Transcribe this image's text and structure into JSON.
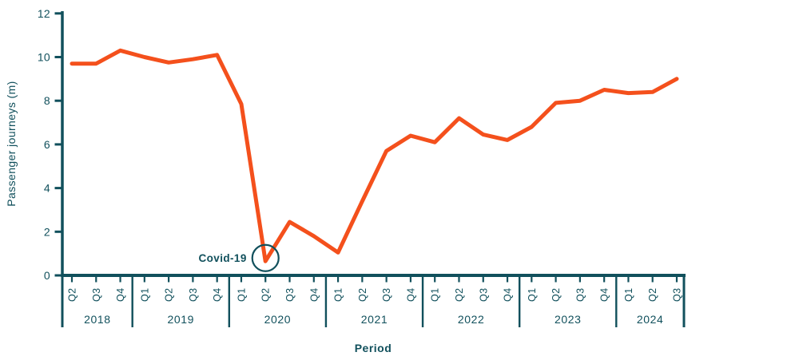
{
  "colors": {
    "axis": "#11505c",
    "line": "#f4501c",
    "background": "#ffffff"
  },
  "chart_data": {
    "type": "line",
    "title": "",
    "xlabel": "Period",
    "ylabel": "Passenger journeys (m)",
    "ylim": [
      0,
      12
    ],
    "y_ticks": [
      0,
      2,
      4,
      6,
      8,
      10,
      12
    ],
    "grid": false,
    "legend": null,
    "year_groups": [
      {
        "year": "2018",
        "quarters": [
          "Q2",
          "Q3",
          "Q4"
        ]
      },
      {
        "year": "2019",
        "quarters": [
          "Q1",
          "Q2",
          "Q3",
          "Q4"
        ]
      },
      {
        "year": "2020",
        "quarters": [
          "Q1",
          "Q2",
          "Q3",
          "Q4"
        ]
      },
      {
        "year": "2021",
        "quarters": [
          "Q1",
          "Q2",
          "Q3",
          "Q4"
        ]
      },
      {
        "year": "2022",
        "quarters": [
          "Q1",
          "Q2",
          "Q3",
          "Q4"
        ]
      },
      {
        "year": "2023",
        "quarters": [
          "Q1",
          "Q2",
          "Q3",
          "Q4"
        ]
      },
      {
        "year": "2024",
        "quarters": [
          "Q1",
          "Q2",
          "Q3"
        ]
      }
    ],
    "series": [
      {
        "name": "Passenger journeys (m)",
        "color": "#f4501c",
        "values": [
          9.7,
          9.7,
          10.3,
          10.0,
          9.75,
          9.9,
          10.1,
          7.85,
          0.65,
          2.45,
          1.8,
          1.05,
          3.4,
          5.7,
          6.4,
          6.1,
          7.2,
          6.45,
          6.2,
          6.8,
          7.9,
          8.0,
          8.5,
          8.35,
          8.4,
          9.0
        ]
      }
    ],
    "annotation": {
      "label": "Covid-19",
      "series": 0,
      "point_index": 8
    }
  }
}
